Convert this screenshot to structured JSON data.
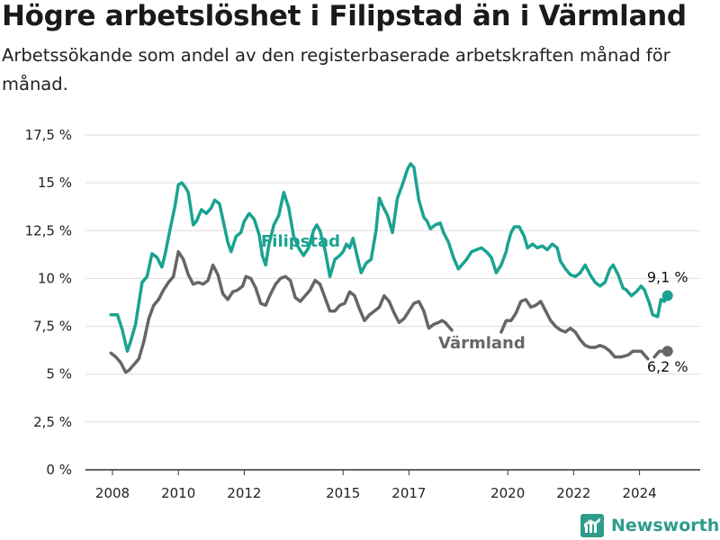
{
  "title": "Högre arbetslöshet i Filipstad än i Värmland",
  "subtitle": "Arbetssökande som andel av den registerbaserade arbetskraften månad för månad.",
  "logo_text": "Newsworthy",
  "chart_data": {
    "type": "line",
    "xlabel": "",
    "ylabel": "",
    "ylim": [
      0,
      17.5
    ],
    "xlim": [
      2007.6,
      2025.8
    ],
    "yticks": [
      {
        "value": 0,
        "label": "0 %"
      },
      {
        "value": 2.5,
        "label": "2,5 %"
      },
      {
        "value": 5,
        "label": "5 %"
      },
      {
        "value": 7.5,
        "label": "7,5 %"
      },
      {
        "value": 10,
        "label": "10 %"
      },
      {
        "value": 12.5,
        "label": "12,5 %"
      },
      {
        "value": 15,
        "label": "15 %"
      },
      {
        "value": 17.5,
        "label": "17,5 %"
      }
    ],
    "xticks": [
      {
        "value": 2008,
        "label": "2008"
      },
      {
        "value": 2010,
        "label": "2010"
      },
      {
        "value": 2012,
        "label": "2012"
      },
      {
        "value": 2015,
        "label": "2015"
      },
      {
        "value": 2017,
        "label": "2017"
      },
      {
        "value": 2020,
        "label": "2020"
      },
      {
        "value": 2022,
        "label": "2022"
      },
      {
        "value": 2024,
        "label": "2024"
      }
    ],
    "grid": true,
    "series": [
      {
        "name": "Filipstad",
        "color": "#1aa391",
        "end_label": "9,1 %",
        "segments": [
          [
            [
              2007.95,
              8.1
            ],
            [
              2008.15,
              8.1
            ],
            [
              2008.3,
              7.3
            ],
            [
              2008.45,
              6.2
            ],
            [
              2008.55,
              6.7
            ],
            [
              2008.7,
              7.6
            ],
            [
              2008.9,
              9.8
            ],
            [
              2009.05,
              10.1
            ],
            [
              2009.2,
              11.3
            ],
            [
              2009.35,
              11.1
            ],
            [
              2009.5,
              10.6
            ],
            [
              2009.6,
              11.3
            ],
            [
              2009.75,
              12.6
            ],
            [
              2009.9,
              13.8
            ],
            [
              2010.0,
              14.9
            ],
            [
              2010.1,
              15.0
            ],
            [
              2010.2,
              14.8
            ],
            [
              2010.3,
              14.5
            ],
            [
              2010.45,
              12.8
            ],
            [
              2010.55,
              13.0
            ],
            [
              2010.7,
              13.6
            ],
            [
              2010.85,
              13.4
            ],
            [
              2011.0,
              13.7
            ],
            [
              2011.1,
              14.1
            ],
            [
              2011.25,
              13.9
            ],
            [
              2011.35,
              13.1
            ],
            [
              2011.5,
              11.9
            ],
            [
              2011.6,
              11.4
            ],
            [
              2011.75,
              12.2
            ],
            [
              2011.9,
              12.4
            ],
            [
              2012.0,
              13.0
            ],
            [
              2012.15,
              13.4
            ],
            [
              2012.3,
              13.1
            ],
            [
              2012.45,
              12.3
            ],
            [
              2012.55,
              11.2
            ],
            [
              2012.65,
              10.7
            ],
            [
              2012.75,
              11.8
            ],
            [
              2012.9,
              12.8
            ],
            [
              2013.05,
              13.3
            ],
            [
              2013.2,
              14.5
            ],
            [
              2013.35,
              13.7
            ],
            [
              2013.5,
              12.2
            ],
            [
              2013.65,
              11.6
            ],
            [
              2013.8,
              11.2
            ],
            [
              2013.95,
              11.6
            ],
            [
              2014.1,
              12.5
            ],
            [
              2014.2,
              12.8
            ],
            [
              2014.3,
              12.5
            ],
            [
              2014.45,
              11.5
            ],
            [
              2014.6,
              10.1
            ],
            [
              2014.75,
              11.0
            ],
            [
              2014.9,
              11.2
            ],
            [
              2015.0,
              11.4
            ],
            [
              2015.1,
              11.8
            ],
            [
              2015.2,
              11.6
            ],
            [
              2015.3,
              12.1
            ],
            [
              2015.45,
              11.0
            ],
            [
              2015.55,
              10.3
            ],
            [
              2015.7,
              10.8
            ],
            [
              2015.85,
              11.0
            ],
            [
              2016.0,
              12.5
            ],
            [
              2016.1,
              14.2
            ],
            [
              2016.2,
              13.8
            ],
            [
              2016.35,
              13.3
            ],
            [
              2016.5,
              12.4
            ],
            [
              2016.65,
              14.2
            ],
            [
              2016.8,
              14.9
            ],
            [
              2016.95,
              15.7
            ],
            [
              2017.05,
              16.0
            ],
            [
              2017.15,
              15.8
            ],
            [
              2017.3,
              14.1
            ],
            [
              2017.45,
              13.2
            ],
            [
              2017.55,
              13.0
            ],
            [
              2017.65,
              12.6
            ],
            [
              2017.8,
              12.8
            ],
            [
              2017.95,
              12.9
            ],
            [
              2018.05,
              12.4
            ],
            [
              2018.2,
              11.9
            ],
            [
              2018.35,
              11.1
            ],
            [
              2018.5,
              10.5
            ],
            [
              2018.6,
              10.7
            ],
            [
              2018.75,
              11.0
            ],
            [
              2018.9,
              11.4
            ],
            [
              2019.05,
              11.5
            ],
            [
              2019.2,
              11.6
            ],
            [
              2019.35,
              11.4
            ],
            [
              2019.5,
              11.1
            ],
            [
              2019.65,
              10.3
            ],
            [
              2019.8,
              10.7
            ],
            [
              2019.95,
              11.4
            ],
            [
              2020.0,
              11.8
            ],
            [
              2020.1,
              12.4
            ],
            [
              2020.2,
              12.7
            ],
            [
              2020.35,
              12.7
            ],
            [
              2020.5,
              12.2
            ],
            [
              2020.6,
              11.6
            ],
            [
              2020.75,
              11.8
            ],
            [
              2020.9,
              11.6
            ],
            [
              2021.05,
              11.7
            ],
            [
              2021.2,
              11.5
            ],
            [
              2021.35,
              11.8
            ],
            [
              2021.5,
              11.6
            ],
            [
              2021.6,
              10.9
            ],
            [
              2021.75,
              10.5
            ],
            [
              2021.9,
              10.2
            ],
            [
              2022.05,
              10.1
            ],
            [
              2022.2,
              10.3
            ],
            [
              2022.35,
              10.7
            ],
            [
              2022.5,
              10.2
            ],
            [
              2022.65,
              9.8
            ],
            [
              2022.8,
              9.6
            ],
            [
              2022.95,
              9.8
            ],
            [
              2023.1,
              10.5
            ],
            [
              2023.2,
              10.7
            ],
            [
              2023.35,
              10.2
            ],
            [
              2023.5,
              9.5
            ],
            [
              2023.6,
              9.4
            ],
            [
              2023.75,
              9.1
            ],
            [
              2023.9,
              9.3
            ],
            [
              2024.05,
              9.6
            ],
            [
              2024.15,
              9.4
            ],
            [
              2024.3,
              8.7
            ],
            [
              2024.4,
              8.1
            ],
            [
              2024.55,
              8.0
            ],
            [
              2024.65,
              8.9
            ],
            [
              2024.75,
              8.8
            ],
            [
              2024.85,
              9.1
            ]
          ]
        ]
      },
      {
        "name": "Värmland",
        "color": "#666666",
        "end_label": "6,2 %",
        "segments": [
          [
            [
              2007.95,
              6.1
            ],
            [
              2008.1,
              5.9
            ],
            [
              2008.25,
              5.6
            ],
            [
              2008.4,
              5.1
            ],
            [
              2008.5,
              5.2
            ],
            [
              2008.65,
              5.5
            ],
            [
              2008.8,
              5.8
            ],
            [
              2008.95,
              6.7
            ],
            [
              2009.1,
              7.9
            ],
            [
              2009.25,
              8.6
            ],
            [
              2009.4,
              8.9
            ],
            [
              2009.55,
              9.4
            ],
            [
              2009.7,
              9.8
            ],
            [
              2009.85,
              10.1
            ],
            [
              2010.0,
              11.4
            ],
            [
              2010.15,
              11.0
            ],
            [
              2010.3,
              10.2
            ],
            [
              2010.45,
              9.7
            ],
            [
              2010.6,
              9.8
            ],
            [
              2010.75,
              9.7
            ],
            [
              2010.9,
              9.9
            ],
            [
              2011.05,
              10.7
            ],
            [
              2011.2,
              10.2
            ],
            [
              2011.35,
              9.2
            ],
            [
              2011.5,
              8.9
            ],
            [
              2011.65,
              9.3
            ],
            [
              2011.8,
              9.4
            ],
            [
              2011.95,
              9.6
            ],
            [
              2012.05,
              10.1
            ],
            [
              2012.2,
              10.0
            ],
            [
              2012.35,
              9.5
            ],
            [
              2012.5,
              8.7
            ],
            [
              2012.65,
              8.6
            ],
            [
              2012.8,
              9.2
            ],
            [
              2012.95,
              9.7
            ],
            [
              2013.1,
              10.0
            ],
            [
              2013.25,
              10.1
            ],
            [
              2013.4,
              9.9
            ],
            [
              2013.55,
              9.0
            ],
            [
              2013.7,
              8.8
            ],
            [
              2013.85,
              9.1
            ],
            [
              2014.0,
              9.4
            ],
            [
              2014.15,
              9.9
            ],
            [
              2014.3,
              9.7
            ],
            [
              2014.45,
              9.0
            ],
            [
              2014.6,
              8.3
            ],
            [
              2014.75,
              8.3
            ],
            [
              2014.9,
              8.6
            ],
            [
              2015.05,
              8.7
            ],
            [
              2015.2,
              9.3
            ],
            [
              2015.35,
              9.1
            ],
            [
              2015.5,
              8.4
            ],
            [
              2015.65,
              7.8
            ],
            [
              2015.8,
              8.1
            ],
            [
              2015.95,
              8.3
            ],
            [
              2016.1,
              8.5
            ],
            [
              2016.25,
              9.1
            ],
            [
              2016.4,
              8.8
            ],
            [
              2016.55,
              8.2
            ],
            [
              2016.7,
              7.7
            ],
            [
              2016.85,
              7.9
            ],
            [
              2017.0,
              8.3
            ],
            [
              2017.15,
              8.7
            ],
            [
              2017.3,
              8.8
            ],
            [
              2017.45,
              8.3
            ],
            [
              2017.6,
              7.4
            ],
            [
              2017.75,
              7.6
            ],
            [
              2017.9,
              7.7
            ],
            [
              2018.0,
              7.8
            ],
            [
              2018.1,
              7.7
            ],
            [
              2018.2,
              7.5
            ],
            [
              2018.3,
              7.3
            ]
          ],
          [
            [
              2019.8,
              7.2
            ],
            [
              2019.95,
              7.8
            ],
            [
              2020.1,
              7.8
            ],
            [
              2020.25,
              8.2
            ],
            [
              2020.4,
              8.8
            ],
            [
              2020.55,
              8.9
            ],
            [
              2020.7,
              8.5
            ],
            [
              2020.85,
              8.6
            ],
            [
              2021.0,
              8.8
            ],
            [
              2021.15,
              8.3
            ],
            [
              2021.3,
              7.8
            ],
            [
              2021.45,
              7.5
            ],
            [
              2021.6,
              7.3
            ],
            [
              2021.75,
              7.2
            ],
            [
              2021.9,
              7.4
            ],
            [
              2022.05,
              7.2
            ],
            [
              2022.2,
              6.8
            ],
            [
              2022.35,
              6.5
            ],
            [
              2022.5,
              6.4
            ],
            [
              2022.65,
              6.4
            ],
            [
              2022.8,
              6.5
            ],
            [
              2022.95,
              6.4
            ],
            [
              2023.1,
              6.2
            ],
            [
              2023.25,
              5.9
            ],
            [
              2023.45,
              5.9
            ],
            [
              2023.65,
              6.0
            ],
            [
              2023.8,
              6.2
            ],
            [
              2023.95,
              6.2
            ],
            [
              2024.05,
              6.2
            ],
            [
              2024.15,
              6.0
            ],
            [
              2024.25,
              5.8
            ]
          ],
          [
            [
              2024.45,
              5.9
            ],
            [
              2024.6,
              6.2
            ],
            [
              2024.85,
              6.2
            ]
          ]
        ]
      }
    ]
  }
}
